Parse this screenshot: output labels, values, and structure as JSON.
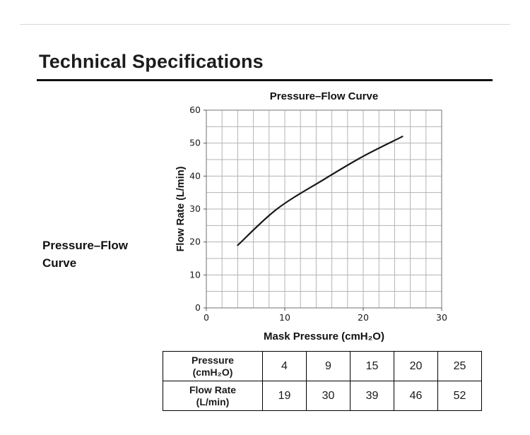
{
  "page": {
    "heading": "Technical Specifications",
    "side_label": {
      "line1": "Pressure–Flow",
      "line2": "Curve"
    }
  },
  "chart_data": {
    "type": "line",
    "title": "Pressure–Flow Curve",
    "xlabel": "Mask Pressure (cmH₂O)",
    "ylabel": "Flow Rate (L/min)",
    "x": [
      4,
      9,
      15,
      20,
      25
    ],
    "y": [
      19,
      30,
      39,
      46,
      52
    ],
    "xlim": [
      0,
      30
    ],
    "ylim": [
      0,
      60
    ],
    "x_major_ticks": [
      0,
      10,
      20,
      30
    ],
    "y_major_ticks": [
      0,
      10,
      20,
      30,
      40,
      50,
      60
    ],
    "x_minor_step": 2,
    "y_minor_step": 5,
    "grid": true,
    "line_color": "#1a1a1a",
    "grid_color": "#b3b3b3",
    "axis_color": "#8a8a8a",
    "legend": "none"
  },
  "table": {
    "rows": [
      {
        "h1": "Pressure",
        "h2": "(cmH₂O)",
        "values": [
          "4",
          "9",
          "15",
          "20",
          "25"
        ]
      },
      {
        "h1": "Flow Rate",
        "h2": "(L/min)",
        "values": [
          "19",
          "30",
          "39",
          "46",
          "52"
        ]
      }
    ]
  }
}
